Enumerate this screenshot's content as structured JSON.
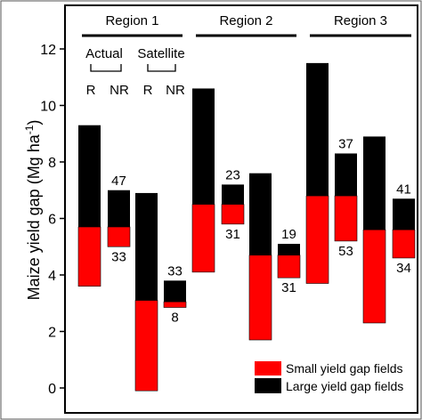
{
  "chart_data": {
    "type": "bar",
    "subtype": "floating-stacked-range",
    "ylabel_main": "Maize yield gap (Mg ha",
    "ylabel_sup": "-1",
    "ylabel_tail": ")",
    "ylim": [
      -0.5,
      12.3
    ],
    "yticks": [
      0,
      2,
      4,
      6,
      8,
      10,
      12
    ],
    "grid": false,
    "legend_position": "bottom-right",
    "series": [
      {
        "key": "small",
        "name": "Small yield gap fields",
        "color": "#ff0000"
      },
      {
        "key": "large",
        "name": "Large yield gap fields",
        "color": "#000000"
      }
    ],
    "regions": [
      {
        "label": "Region 1"
      },
      {
        "label": "Region 2"
      },
      {
        "label": "Region 3"
      }
    ],
    "source_labels": {
      "actual": "Actual",
      "satellite": "Satellite"
    },
    "category_labels": {
      "r": "R",
      "nr": "NR"
    },
    "bars": [
      {
        "region": 0,
        "source": "actual",
        "category": "R",
        "small": [
          3.6,
          5.7
        ],
        "large": [
          5.7,
          9.3
        ],
        "top_label": "",
        "bottom_label": ""
      },
      {
        "region": 0,
        "source": "actual",
        "category": "NR",
        "small": [
          5.0,
          5.7
        ],
        "large": [
          5.7,
          7.0
        ],
        "top_label": "47",
        "bottom_label": "33"
      },
      {
        "region": 0,
        "source": "satellite",
        "category": "R",
        "small": [
          -0.1,
          3.1
        ],
        "large": [
          3.1,
          6.9
        ],
        "top_label": "",
        "bottom_label": ""
      },
      {
        "region": 0,
        "source": "satellite",
        "category": "NR",
        "small": [
          2.85,
          3.05
        ],
        "large": [
          3.05,
          3.8
        ],
        "top_label": "33",
        "bottom_label": "8"
      },
      {
        "region": 1,
        "source": "actual",
        "category": "R",
        "small": [
          4.1,
          6.5
        ],
        "large": [
          6.5,
          10.6
        ],
        "top_label": "",
        "bottom_label": ""
      },
      {
        "region": 1,
        "source": "actual",
        "category": "NR",
        "small": [
          5.8,
          6.5
        ],
        "large": [
          6.5,
          7.2
        ],
        "top_label": "23",
        "bottom_label": "31"
      },
      {
        "region": 1,
        "source": "satellite",
        "category": "R",
        "small": [
          1.7,
          4.7
        ],
        "large": [
          4.7,
          7.6
        ],
        "top_label": "",
        "bottom_label": ""
      },
      {
        "region": 1,
        "source": "satellite",
        "category": "NR",
        "small": [
          3.9,
          4.7
        ],
        "large": [
          4.7,
          5.1
        ],
        "top_label": "19",
        "bottom_label": "31"
      },
      {
        "region": 2,
        "source": "actual",
        "category": "R",
        "small": [
          3.7,
          6.8
        ],
        "large": [
          6.8,
          11.5
        ],
        "top_label": "",
        "bottom_label": ""
      },
      {
        "region": 2,
        "source": "actual",
        "category": "NR",
        "small": [
          5.2,
          6.8
        ],
        "large": [
          6.8,
          8.3
        ],
        "top_label": "37",
        "bottom_label": "53"
      },
      {
        "region": 2,
        "source": "satellite",
        "category": "R",
        "small": [
          2.3,
          5.6
        ],
        "large": [
          5.6,
          8.9
        ],
        "top_label": "",
        "bottom_label": ""
      },
      {
        "region": 2,
        "source": "satellite",
        "category": "NR",
        "small": [
          4.6,
          5.6
        ],
        "large": [
          5.6,
          6.7
        ],
        "top_label": "41",
        "bottom_label": "34"
      }
    ]
  }
}
